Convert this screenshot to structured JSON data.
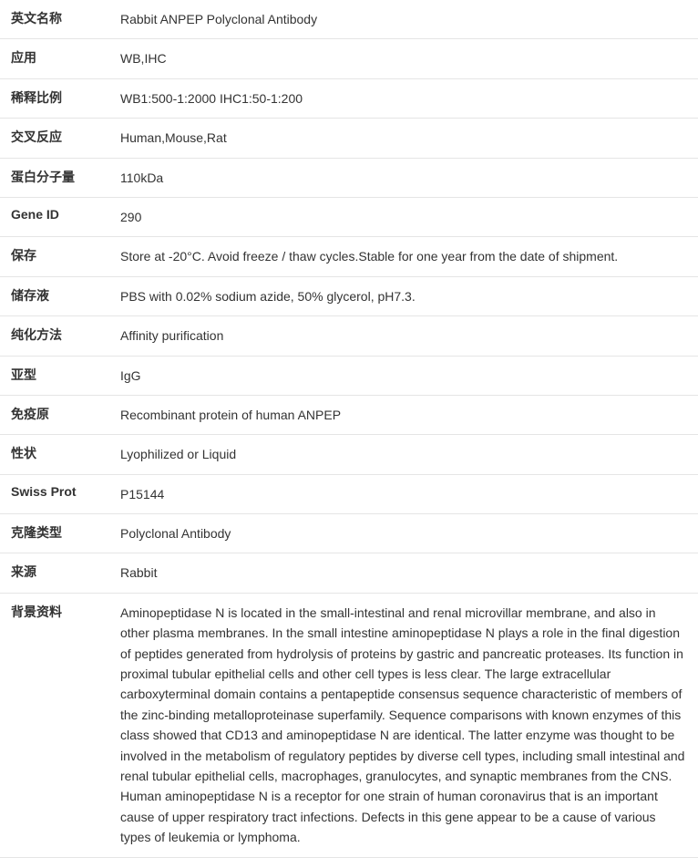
{
  "rows": [
    {
      "label": "英文名称",
      "value": "Rabbit ANPEP Polyclonal Antibody"
    },
    {
      "label": "应用",
      "value": "WB,IHC"
    },
    {
      "label": "稀释比例",
      "value": "WB1:500-1:2000 IHC1:50-1:200"
    },
    {
      "label": "交叉反应",
      "value": "Human,Mouse,Rat"
    },
    {
      "label": "蛋白分子量",
      "value": "110kDa"
    },
    {
      "label": "Gene ID",
      "value": "290"
    },
    {
      "label": "保存",
      "value": "Store at -20°C. Avoid freeze / thaw cycles.Stable for one year from the date of shipment."
    },
    {
      "label": "储存液",
      "value": "PBS with 0.02% sodium azide, 50% glycerol, pH7.3."
    },
    {
      "label": "纯化方法",
      "value": "Affinity purification"
    },
    {
      "label": "亚型",
      "value": "IgG"
    },
    {
      "label": "免疫原",
      "value": "Recombinant protein of human ANPEP"
    },
    {
      "label": "性状",
      "value": "Lyophilized or Liquid"
    },
    {
      "label": "Swiss Prot",
      "value": "P15144"
    },
    {
      "label": "克隆类型",
      "value": "Polyclonal Antibody"
    },
    {
      "label": "来源",
      "value": "Rabbit"
    },
    {
      "label": "背景资料",
      "value": "Aminopeptidase N is located in the small-intestinal and renal microvillar membrane, and also in other plasma membranes. In the small intestine aminopeptidase N plays a role in the final digestion of peptides generated from hydrolysis of proteins by gastric and pancreatic proteases. Its function in proximal tubular epithelial cells and other cell types is less clear. The large extracellular carboxyterminal domain contains a pentapeptide consensus sequence characteristic of members of the zinc-binding metalloproteinase superfamily. Sequence comparisons with known enzymes of this class showed that CD13 and aminopeptidase N are identical. The latter enzyme was thought to be involved in the metabolism of regulatory peptides by diverse cell types, including small intestinal and renal tubular epithelial cells, macrophages, granulocytes, and synaptic membranes from the CNS. Human aminopeptidase N is a receptor for one strain of human coronavirus that is an important cause of upper respiratory tract infections. Defects in this gene appear to be a cause of various types of leukemia or lymphoma."
    }
  ]
}
